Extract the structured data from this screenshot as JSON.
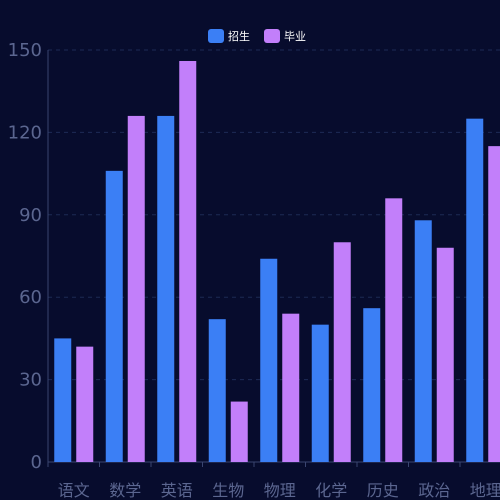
{
  "chart_data": {
    "type": "bar",
    "categories": [
      "语文",
      "数学",
      "英语",
      "生物",
      "物理",
      "化学",
      "历史",
      "政治",
      "地理"
    ],
    "series": [
      {
        "name": "招生",
        "color": "#3b7ff5",
        "values": [
          45,
          106,
          126,
          52,
          74,
          50,
          56,
          88,
          125
        ]
      },
      {
        "name": "毕业",
        "color": "#c27ffa",
        "values": [
          42,
          126,
          146,
          22,
          54,
          80,
          96,
          78,
          115
        ]
      }
    ],
    "ylim": [
      0,
      150
    ],
    "yticks": [
      0,
      30,
      60,
      90,
      120,
      150
    ],
    "grid": true,
    "legend": "top-center"
  },
  "colors": {
    "background": "#070c2d",
    "grid": "#1d2a55",
    "axis": "#3a4570",
    "tick_text": "#5b6690"
  }
}
